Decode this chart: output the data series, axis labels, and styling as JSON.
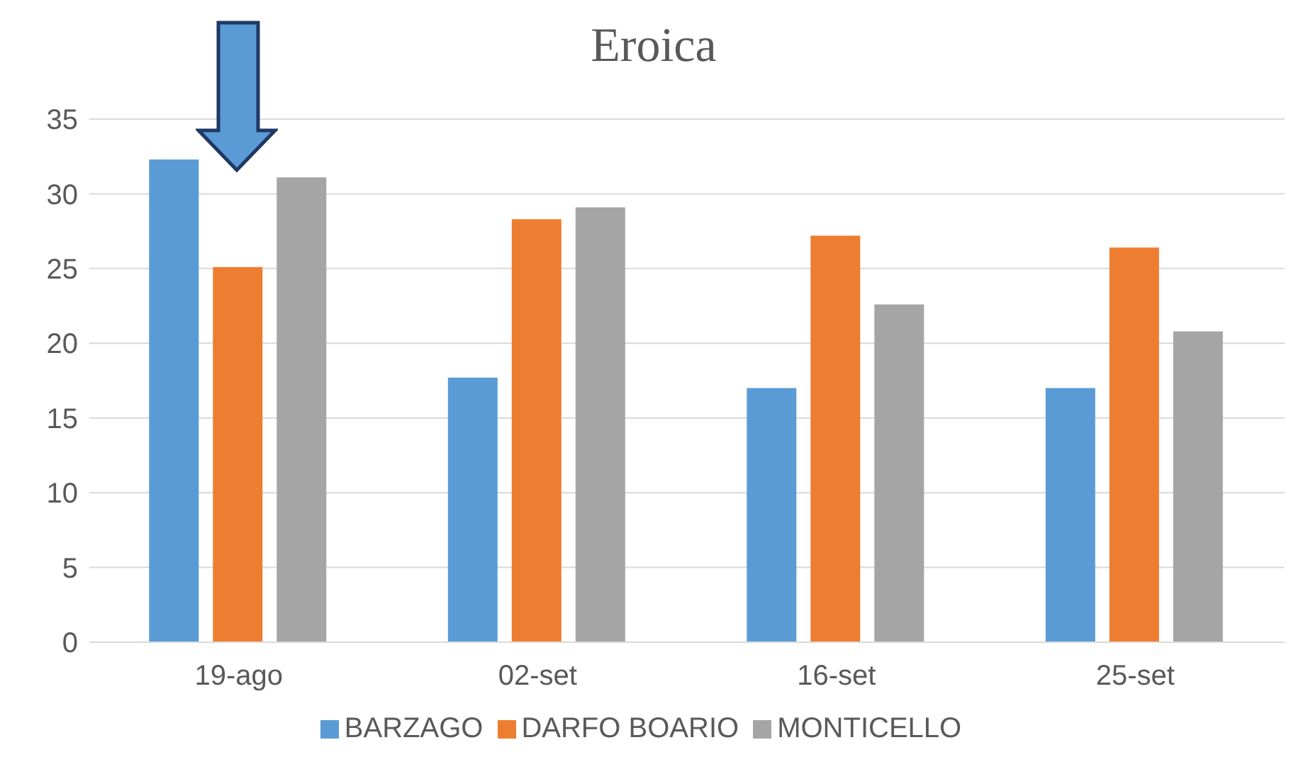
{
  "chart_data": {
    "type": "bar",
    "title": "Eroica",
    "categories": [
      "19-ago",
      "02-set",
      "16-set",
      "25-set"
    ],
    "series": [
      {
        "name": "BARZAGO",
        "color": "#5b9bd5",
        "values": [
          32.3,
          17.7,
          17.0,
          17.0
        ]
      },
      {
        "name": "DARFO BOARIO",
        "color": "#ed7d31",
        "values": [
          25.1,
          28.3,
          27.2,
          26.4
        ]
      },
      {
        "name": "MONTICELLO",
        "color": "#a5a5a5",
        "values": [
          31.1,
          29.1,
          22.6,
          20.8
        ]
      }
    ],
    "ylim": [
      0,
      35
    ],
    "yticks": [
      0,
      5,
      10,
      15,
      20,
      25,
      30,
      35
    ],
    "grid": "y",
    "legend": "bottom"
  }
}
